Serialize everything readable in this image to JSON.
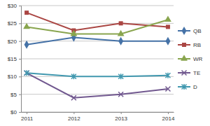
{
  "chart_data": {
    "type": "line",
    "categories": [
      "2011",
      "2012",
      "2013",
      "2014"
    ],
    "ylim": [
      0,
      30
    ],
    "yticks": [
      {
        "value": 0,
        "label": "$0"
      },
      {
        "value": 5,
        "label": "$5"
      },
      {
        "value": 10,
        "label": "$10"
      },
      {
        "value": 15,
        "label": "$15"
      },
      {
        "value": 20,
        "label": "$20"
      },
      {
        "value": 25,
        "label": "$25"
      },
      {
        "value": 30,
        "label": "$30"
      }
    ],
    "grid": true,
    "legend": "right",
    "series": [
      {
        "name": "QB",
        "color": "#4572a7",
        "marker": "diamond",
        "values": [
          19,
          21,
          20,
          20
        ]
      },
      {
        "name": "RB",
        "color": "#aa4643",
        "marker": "square",
        "values": [
          28,
          23,
          25,
          24
        ]
      },
      {
        "name": "WR",
        "color": "#89a54e",
        "marker": "triangle",
        "values": [
          24,
          22,
          22,
          26
        ]
      },
      {
        "name": "TE",
        "color": "#71588f",
        "marker": "x",
        "values": [
          11,
          4,
          5,
          6.5
        ]
      },
      {
        "name": "D",
        "color": "#4198af",
        "marker": "asterisk",
        "values": [
          11,
          10,
          10,
          10.3
        ]
      }
    ]
  }
}
